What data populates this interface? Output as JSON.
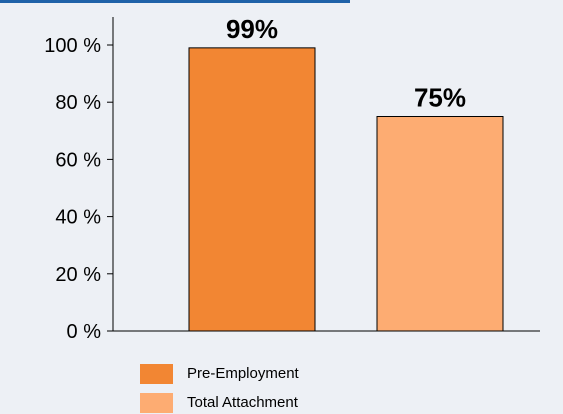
{
  "chart_data": {
    "type": "bar",
    "categories": [
      "Pre-Employment",
      "Total Attachment"
    ],
    "values": [
      99,
      75
    ],
    "data_labels": [
      "99%",
      "75%"
    ],
    "ylim": [
      0,
      100
    ],
    "y_ticks": [
      0,
      20,
      40,
      60,
      80,
      100
    ],
    "y_tick_labels": [
      "0 %",
      "20 %",
      "40 %",
      "60 %",
      "80 %",
      "100 %"
    ],
    "grid": false,
    "legend_position": "bottom-left",
    "colors": [
      "#f28633",
      "#fdac72"
    ]
  },
  "legend": {
    "items": [
      {
        "label": "Pre-Employment",
        "color": "#f28633"
      },
      {
        "label": "Total Attachment",
        "color": "#fdac72"
      }
    ]
  },
  "theme": {
    "background": "#edf0f5",
    "accent": "#1f62a8"
  }
}
